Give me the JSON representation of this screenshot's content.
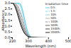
{
  "chart_data": {
    "type": "line",
    "title": "Irradiation time",
    "xlabel": "Wavelength (nm)",
    "ylabel": "Absorbance",
    "xlim": [
      220,
      500
    ],
    "ylim": [
      0,
      3.0
    ],
    "xticks": [
      220,
      300,
      400,
      500
    ],
    "yticks": [
      {
        "value": 0,
        "label": "0.0"
      },
      0.5,
      {
        "value": 1.0,
        "label": "1.0"
      },
      1.5,
      {
        "value": 2.0,
        "label": "2.0"
      },
      2.5,
      {
        "value": 3.0,
        "label": "3.0"
      }
    ],
    "grid": false,
    "legend": "upper right",
    "x": [
      220,
      225,
      230,
      235,
      240,
      245,
      250,
      255,
      260,
      265,
      270,
      275,
      280,
      285,
      290,
      295,
      300,
      305,
      310,
      315,
      320,
      330,
      340,
      350,
      360,
      380,
      400,
      450,
      500
    ],
    "series": [
      {
        "name": "0 h",
        "color": "#44ccee",
        "line_style": "solid",
        "values": [
          3.0,
          3.0,
          3.0,
          3.0,
          3.0,
          3.0,
          3.0,
          2.98,
          2.92,
          2.75,
          2.45,
          2.1,
          1.7,
          1.3,
          0.9,
          0.6,
          0.38,
          0.22,
          0.12,
          0.07,
          0.04,
          0.02,
          0.01,
          0.0,
          0.0,
          0.0,
          0.0,
          0.0,
          0.0
        ]
      },
      {
        "name": "1 h",
        "color": "#66ddff",
        "line_style": "dashed",
        "values": [
          3.0,
          3.0,
          3.0,
          3.0,
          3.0,
          3.0,
          2.98,
          2.95,
          2.88,
          2.7,
          2.38,
          2.02,
          1.62,
          1.22,
          0.84,
          0.55,
          0.34,
          0.2,
          0.11,
          0.06,
          0.03,
          0.01,
          0.0,
          0.0,
          0.0,
          0.0,
          0.0,
          0.0,
          0.0
        ]
      },
      {
        "name": "10h",
        "color": "#88ccdd",
        "line_style": "solid",
        "values": [
          3.0,
          3.0,
          3.0,
          3.0,
          3.0,
          2.98,
          2.93,
          2.85,
          2.72,
          2.5,
          2.18,
          1.82,
          1.42,
          1.04,
          0.7,
          0.44,
          0.27,
          0.16,
          0.09,
          0.05,
          0.03,
          0.01,
          0.0,
          0.0,
          0.0,
          0.0,
          0.0,
          0.0,
          0.0
        ]
      },
      {
        "name": "50h",
        "color": "#aaaaaa",
        "line_style": "solid",
        "values": [
          3.0,
          3.0,
          3.0,
          2.98,
          2.93,
          2.83,
          2.68,
          2.48,
          2.25,
          2.0,
          1.7,
          1.4,
          1.05,
          0.76,
          0.52,
          0.34,
          0.21,
          0.13,
          0.08,
          0.05,
          0.03,
          0.02,
          0.01,
          0.0,
          0.0,
          0.0,
          0.0,
          0.0,
          0.0
        ]
      },
      {
        "name": "100h",
        "color": "#888888",
        "line_style": "dashed",
        "values": [
          3.0,
          3.0,
          2.98,
          2.94,
          2.86,
          2.72,
          2.52,
          2.28,
          2.02,
          1.74,
          1.46,
          1.18,
          0.88,
          0.63,
          0.43,
          0.28,
          0.18,
          0.11,
          0.07,
          0.05,
          0.03,
          0.02,
          0.01,
          0.01,
          0.0,
          0.0,
          0.0,
          0.0,
          0.0
        ]
      },
      {
        "name": "500h",
        "color": "#555555",
        "line_style": "solid",
        "values": [
          3.0,
          2.98,
          2.92,
          2.82,
          2.66,
          2.45,
          2.2,
          1.92,
          1.64,
          1.36,
          1.1,
          0.86,
          0.65,
          0.47,
          0.33,
          0.22,
          0.14,
          0.09,
          0.06,
          0.04,
          0.03,
          0.02,
          0.01,
          0.01,
          0.01,
          0.0,
          0.0,
          0.0,
          0.0
        ]
      },
      {
        "name": "1500h",
        "color": "#333333",
        "line_style": "solid",
        "values": [
          3.0,
          2.95,
          2.84,
          2.68,
          2.46,
          2.2,
          1.9,
          1.6,
          1.32,
          1.06,
          0.82,
          0.62,
          0.45,
          0.32,
          0.22,
          0.15,
          0.1,
          0.07,
          0.05,
          0.04,
          0.03,
          0.02,
          0.02,
          0.01,
          0.01,
          0.01,
          0.0,
          0.0,
          0.0
        ]
      },
      {
        "name": "2000h",
        "color": "#111111",
        "line_style": "solid",
        "values": [
          3.0,
          2.92,
          2.78,
          2.58,
          2.34,
          2.06,
          1.76,
          1.46,
          1.18,
          0.93,
          0.72,
          0.54,
          0.39,
          0.28,
          0.19,
          0.13,
          0.09,
          0.06,
          0.05,
          0.04,
          0.03,
          0.02,
          0.02,
          0.01,
          0.01,
          0.01,
          0.0,
          0.0,
          0.0
        ]
      }
    ]
  }
}
